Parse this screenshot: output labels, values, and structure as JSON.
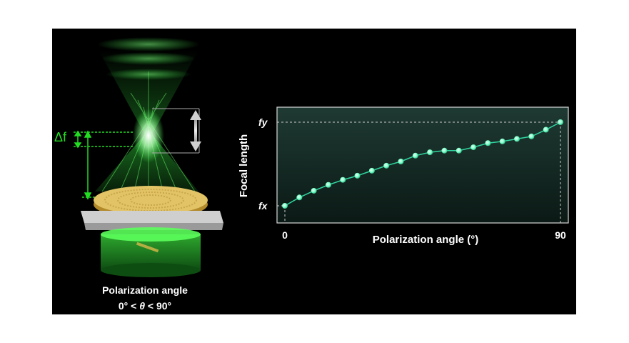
{
  "colors": {
    "background": "#000000",
    "beam_green": "#3cff4a",
    "delta_green": "#22dd22",
    "point_fill": "#7dffc8",
    "line": "#2fd6a0",
    "plot_frame": "#d8d8d8"
  },
  "illustration": {
    "delta_label": "Δf",
    "caption_line1": "Polarization angle",
    "caption_prefix": "0° < ",
    "caption_theta": "θ",
    "caption_suffix": " < 90°"
  },
  "chart_data": {
    "type": "line",
    "xlabel": "Polarization angle (°)",
    "ylabel": "Focal length",
    "x_tick_labels": [
      "0",
      "90"
    ],
    "y_tick_labels": [
      "fx",
      "fy"
    ],
    "xlim": [
      0,
      90
    ],
    "ylim": [
      0,
      1
    ],
    "grid": false,
    "series": [
      {
        "x": [
          0,
          4.74,
          9.47,
          14.21,
          18.95,
          23.68,
          28.42,
          33.16,
          37.89,
          42.63,
          47.37,
          52.11,
          56.84,
          61.58,
          66.32,
          71.05,
          75.79,
          80.53,
          85.26,
          90
        ],
        "y": [
          0,
          0.1,
          0.18,
          0.25,
          0.31,
          0.36,
          0.42,
          0.48,
          0.53,
          0.6,
          0.64,
          0.66,
          0.66,
          0.7,
          0.75,
          0.77,
          0.8,
          0.83,
          0.91,
          1.0
        ]
      }
    ]
  }
}
